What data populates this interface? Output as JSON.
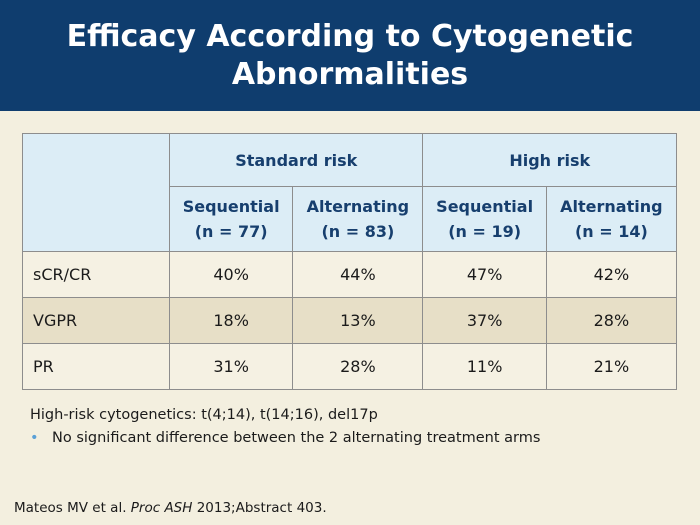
{
  "slide": {
    "title_line1": "Efficacy According to Cytogenetic",
    "title_line2": "Abnormalities"
  },
  "table": {
    "group_headers": [
      "Standard risk",
      "High risk"
    ],
    "sub_headers": [
      {
        "arm": "Sequential",
        "n": "(n = 77)"
      },
      {
        "arm": "Alternating",
        "n": "(n = 83)"
      },
      {
        "arm": "Sequential",
        "n": "(n = 19)"
      },
      {
        "arm": "Alternating",
        "n": "(n = 14)"
      }
    ],
    "rows": [
      {
        "label": "sCR/CR",
        "values": [
          "40%",
          "44%",
          "47%",
          "42%"
        ]
      },
      {
        "label": "VGPR",
        "values": [
          "18%",
          "13%",
          "37%",
          "28%"
        ]
      },
      {
        "label": "PR",
        "values": [
          "31%",
          "28%",
          "11%",
          "21%"
        ]
      }
    ]
  },
  "notes": {
    "definition": "High-risk cytogenetics: t(4;14), t(14;16), del17p",
    "bullet": "No significant difference between the 2 alternating treatment arms"
  },
  "citation": {
    "authors": "Mateos MV et al.",
    "journal": "Proc ASH",
    "details": "2013;Abstract 403."
  }
}
